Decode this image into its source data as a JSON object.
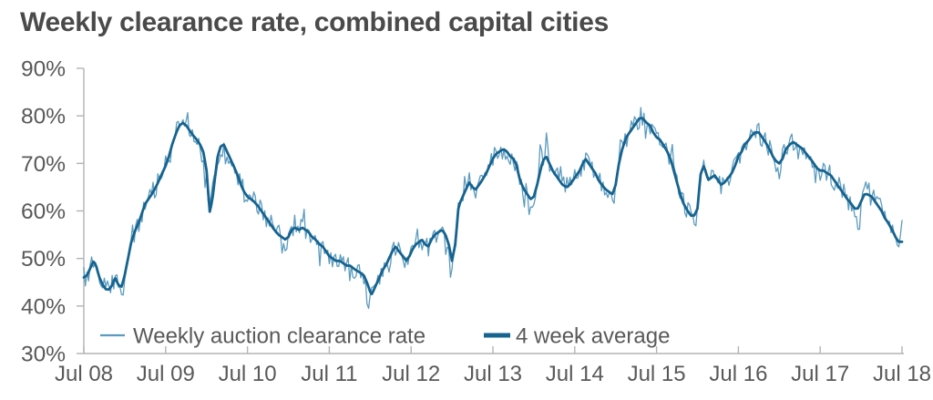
{
  "chart_data": {
    "type": "line",
    "title": "Weekly clearance rate, combined capital cities",
    "xlabel": "",
    "ylabel": "",
    "ylim": [
      30,
      90
    ],
    "x_range_years": [
      0,
      10
    ],
    "grid": false,
    "legend_position": "bottom-left-inside",
    "y_tick_labels": [
      "90%",
      "80%",
      "70%",
      "60%",
      "50%",
      "40%",
      "30%"
    ],
    "y_tick_values": [
      90,
      80,
      70,
      60,
      50,
      40,
      30
    ],
    "x_tick_labels": [
      "Jul 08",
      "Jul 09",
      "Jul 10",
      "Jul 11",
      "Jul 12",
      "Jul 13",
      "Jul 14",
      "Jul 15",
      "Jul 16",
      "Jul 17",
      "Jul 18"
    ],
    "series": [
      {
        "name": "Weekly auction clearance rate",
        "style": "thin",
        "color": "#5C9BBF",
        "derived_from": "avg_plus_weekly_scatter"
      },
      {
        "name": "4 week average",
        "style": "thick",
        "color": "#16638F",
        "points": [
          [
            0.0,
            46
          ],
          [
            0.04,
            46.5
          ],
          [
            0.08,
            48
          ],
          [
            0.12,
            49.5
          ],
          [
            0.15,
            48.5
          ],
          [
            0.19,
            46
          ],
          [
            0.23,
            44.5
          ],
          [
            0.27,
            43.5
          ],
          [
            0.31,
            43.5
          ],
          [
            0.35,
            44.5
          ],
          [
            0.38,
            46
          ],
          [
            0.42,
            44.5
          ],
          [
            0.46,
            44
          ],
          [
            0.5,
            46.5
          ],
          [
            0.54,
            50
          ],
          [
            0.58,
            53.5
          ],
          [
            0.63,
            56
          ],
          [
            0.67,
            57.5
          ],
          [
            0.71,
            59.5
          ],
          [
            0.75,
            61.5
          ],
          [
            0.79,
            62.5
          ],
          [
            0.83,
            63.5
          ],
          [
            0.88,
            65
          ],
          [
            0.92,
            66.5
          ],
          [
            0.96,
            68
          ],
          [
            1.0,
            69.5
          ],
          [
            1.04,
            71.5
          ],
          [
            1.08,
            74
          ],
          [
            1.13,
            76.5
          ],
          [
            1.17,
            78
          ],
          [
            1.21,
            78.5
          ],
          [
            1.25,
            78
          ],
          [
            1.29,
            77
          ],
          [
            1.33,
            76
          ],
          [
            1.38,
            75
          ],
          [
            1.42,
            74
          ],
          [
            1.46,
            72.5
          ],
          [
            1.5,
            68.5
          ],
          [
            1.54,
            59.5
          ],
          [
            1.58,
            63.5
          ],
          [
            1.63,
            71
          ],
          [
            1.67,
            73.5
          ],
          [
            1.71,
            74
          ],
          [
            1.75,
            72.5
          ],
          [
            1.79,
            71
          ],
          [
            1.83,
            69.5
          ],
          [
            1.88,
            67.5
          ],
          [
            1.92,
            65.5
          ],
          [
            1.96,
            64
          ],
          [
            2.0,
            63
          ],
          [
            2.04,
            62.5
          ],
          [
            2.08,
            62
          ],
          [
            2.13,
            61
          ],
          [
            2.17,
            60
          ],
          [
            2.21,
            59
          ],
          [
            2.25,
            58
          ],
          [
            2.29,
            57
          ],
          [
            2.33,
            56
          ],
          [
            2.38,
            55
          ],
          [
            2.42,
            54.5
          ],
          [
            2.46,
            54
          ],
          [
            2.5,
            54.5
          ],
          [
            2.54,
            56
          ],
          [
            2.58,
            56.5
          ],
          [
            2.63,
            56
          ],
          [
            2.67,
            56.5
          ],
          [
            2.71,
            56
          ],
          [
            2.75,
            55.5
          ],
          [
            2.79,
            54.5
          ],
          [
            2.83,
            54
          ],
          [
            2.88,
            53
          ],
          [
            2.92,
            52.5
          ],
          [
            2.96,
            51.5
          ],
          [
            3.0,
            50.5
          ],
          [
            3.04,
            50
          ],
          [
            3.08,
            49.5
          ],
          [
            3.13,
            49.5
          ],
          [
            3.17,
            49
          ],
          [
            3.21,
            48.5
          ],
          [
            3.25,
            48.5
          ],
          [
            3.29,
            48
          ],
          [
            3.33,
            47.5
          ],
          [
            3.38,
            47
          ],
          [
            3.42,
            46.5
          ],
          [
            3.46,
            45
          ],
          [
            3.5,
            43
          ],
          [
            3.52,
            42.5
          ],
          [
            3.56,
            44
          ],
          [
            3.6,
            45.5
          ],
          [
            3.65,
            47.5
          ],
          [
            3.69,
            48.5
          ],
          [
            3.73,
            50
          ],
          [
            3.77,
            51.5
          ],
          [
            3.81,
            52.5
          ],
          [
            3.85,
            51.5
          ],
          [
            3.9,
            50.5
          ],
          [
            3.94,
            49.5
          ],
          [
            3.98,
            50.5
          ],
          [
            4.02,
            52
          ],
          [
            4.06,
            53
          ],
          [
            4.1,
            53.5
          ],
          [
            4.13,
            54
          ],
          [
            4.17,
            53
          ],
          [
            4.21,
            52.5
          ],
          [
            4.25,
            54
          ],
          [
            4.29,
            55
          ],
          [
            4.33,
            55.5
          ],
          [
            4.38,
            56
          ],
          [
            4.42,
            55
          ],
          [
            4.46,
            53
          ],
          [
            4.5,
            49.5
          ],
          [
            4.54,
            53
          ],
          [
            4.58,
            61
          ],
          [
            4.63,
            63
          ],
          [
            4.67,
            64.5
          ],
          [
            4.71,
            66
          ],
          [
            4.75,
            65
          ],
          [
            4.79,
            64.5
          ],
          [
            4.83,
            65.5
          ],
          [
            4.87,
            66.5
          ],
          [
            4.92,
            68
          ],
          [
            4.96,
            69.5
          ],
          [
            5.0,
            71
          ],
          [
            5.04,
            72
          ],
          [
            5.08,
            72.5
          ],
          [
            5.13,
            73
          ],
          [
            5.17,
            72.5
          ],
          [
            5.21,
            71.5
          ],
          [
            5.25,
            71
          ],
          [
            5.29,
            69.5
          ],
          [
            5.33,
            66.5
          ],
          [
            5.38,
            64.5
          ],
          [
            5.42,
            63.5
          ],
          [
            5.46,
            62.5
          ],
          [
            5.5,
            63
          ],
          [
            5.54,
            65.5
          ],
          [
            5.58,
            68.5
          ],
          [
            5.61,
            70.5
          ],
          [
            5.65,
            71.5
          ],
          [
            5.69,
            70
          ],
          [
            5.73,
            68.5
          ],
          [
            5.77,
            67.5
          ],
          [
            5.81,
            66.5
          ],
          [
            5.85,
            65.5
          ],
          [
            5.9,
            65
          ],
          [
            5.94,
            65.5
          ],
          [
            5.98,
            66.5
          ],
          [
            6.02,
            67.5
          ],
          [
            6.06,
            68.5
          ],
          [
            6.1,
            70
          ],
          [
            6.13,
            71
          ],
          [
            6.17,
            70
          ],
          [
            6.21,
            69
          ],
          [
            6.25,
            68
          ],
          [
            6.29,
            66.5
          ],
          [
            6.33,
            65.5
          ],
          [
            6.38,
            64.5
          ],
          [
            6.42,
            64
          ],
          [
            6.46,
            63.5
          ],
          [
            6.5,
            65.5
          ],
          [
            6.54,
            70
          ],
          [
            6.58,
            73
          ],
          [
            6.63,
            75.5
          ],
          [
            6.67,
            76.5
          ],
          [
            6.71,
            77.5
          ],
          [
            6.75,
            78.5
          ],
          [
            6.79,
            79.5
          ],
          [
            6.83,
            79.5
          ],
          [
            6.88,
            78.5
          ],
          [
            6.92,
            78
          ],
          [
            6.96,
            76.5
          ],
          [
            7.0,
            75.5
          ],
          [
            7.04,
            75
          ],
          [
            7.08,
            74
          ],
          [
            7.13,
            72.5
          ],
          [
            7.17,
            71
          ],
          [
            7.21,
            68.5
          ],
          [
            7.25,
            66
          ],
          [
            7.29,
            63.5
          ],
          [
            7.33,
            61.5
          ],
          [
            7.38,
            60
          ],
          [
            7.42,
            59
          ],
          [
            7.46,
            59
          ],
          [
            7.5,
            60.5
          ],
          [
            7.54,
            68
          ],
          [
            7.58,
            69.5
          ],
          [
            7.63,
            66.5
          ],
          [
            7.67,
            67
          ],
          [
            7.71,
            67.5
          ],
          [
            7.75,
            66.5
          ],
          [
            7.79,
            65.5
          ],
          [
            7.83,
            66
          ],
          [
            7.88,
            67
          ],
          [
            7.92,
            68
          ],
          [
            7.96,
            69.5
          ],
          [
            8.0,
            71.5
          ],
          [
            8.04,
            72.5
          ],
          [
            8.08,
            74
          ],
          [
            8.13,
            75
          ],
          [
            8.17,
            76
          ],
          [
            8.21,
            76.5
          ],
          [
            8.25,
            76.5
          ],
          [
            8.29,
            75.5
          ],
          [
            8.33,
            74.5
          ],
          [
            8.38,
            73
          ],
          [
            8.42,
            71.5
          ],
          [
            8.46,
            70.5
          ],
          [
            8.5,
            70
          ],
          [
            8.54,
            71
          ],
          [
            8.58,
            73
          ],
          [
            8.63,
            74
          ],
          [
            8.67,
            74.5
          ],
          [
            8.71,
            74
          ],
          [
            8.75,
            73.5
          ],
          [
            8.79,
            73
          ],
          [
            8.83,
            72
          ],
          [
            8.88,
            71
          ],
          [
            8.92,
            70
          ],
          [
            8.96,
            69
          ],
          [
            9.0,
            68.5
          ],
          [
            9.04,
            68.5
          ],
          [
            9.08,
            68
          ],
          [
            9.13,
            67.5
          ],
          [
            9.17,
            66.5
          ],
          [
            9.21,
            65.5
          ],
          [
            9.25,
            64.5
          ],
          [
            9.29,
            63.5
          ],
          [
            9.33,
            62.5
          ],
          [
            9.38,
            61.5
          ],
          [
            9.42,
            60.5
          ],
          [
            9.46,
            60.5
          ],
          [
            9.5,
            62
          ],
          [
            9.54,
            63.5
          ],
          [
            9.58,
            63.5
          ],
          [
            9.63,
            63
          ],
          [
            9.67,
            62
          ],
          [
            9.71,
            61
          ],
          [
            9.75,
            60
          ],
          [
            9.79,
            58.5
          ],
          [
            9.83,
            57.5
          ],
          [
            9.88,
            56
          ],
          [
            9.92,
            54.5
          ],
          [
            9.96,
            53.5
          ],
          [
            10.0,
            53.5
          ]
        ]
      }
    ],
    "weekly_generation": {
      "seed": 20180707,
      "weeks_per_year": 52,
      "base_amplitude": 2.1,
      "spike_probability": 0.1,
      "spike_amplitude": 3.4,
      "christmas_dip": 4.2,
      "newyear_spike": 5.0,
      "clamp": [
        39.5,
        82
      ],
      "end_uptick": [
        1.5,
        4.5
      ]
    }
  },
  "colors": {
    "weekly_line": "#5C9BBF",
    "avg_line": "#16638F",
    "axis": "#B3B3B3",
    "axis_text": "#595959",
    "legend_text": "#595959",
    "title_text": "#4A4A4A",
    "background": "#FFFFFF"
  }
}
